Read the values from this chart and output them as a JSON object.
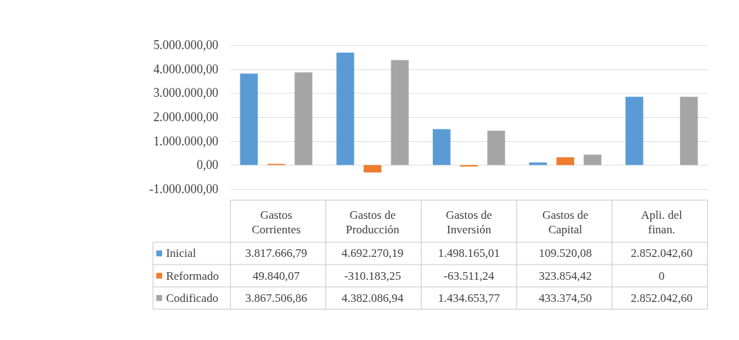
{
  "chart_data": {
    "type": "bar",
    "categories": [
      "Gastos Corrientes",
      "Gastos de Producción",
      "Gastos de Inversión",
      "Gastos de Capital",
      "Apli. del finan."
    ],
    "series": [
      {
        "name": "Inicial",
        "color": "#5b9bd5",
        "values": [
          3817666.79,
          4692270.19,
          1498165.01,
          109520.08,
          2852042.6
        ],
        "value_labels": [
          "3.817.666,79",
          "4.692.270,19",
          "1.498.165,01",
          "109.520,08",
          "2.852.042,60"
        ]
      },
      {
        "name": "Reformado",
        "color": "#ed7d31",
        "values": [
          49840.07,
          -310183.25,
          -63511.24,
          323854.42,
          0
        ],
        "value_labels": [
          "49.840,07",
          "-310.183,25",
          "-63.511,24",
          "323.854,42",
          "0"
        ]
      },
      {
        "name": "Codificado",
        "color": "#a5a5a5",
        "values": [
          3867506.86,
          4382086.94,
          1434653.77,
          433374.5,
          2852042.6
        ],
        "value_labels": [
          "3.867.506,86",
          "4.382.086,94",
          "1.434.653,77",
          "433.374,50",
          "2.852.042,60"
        ]
      }
    ],
    "ylim": [
      -1000000,
      5000000
    ],
    "yticks": [
      {
        "value": -1000000,
        "label": "-1.000.000,00"
      },
      {
        "value": 0,
        "label": "0,00"
      },
      {
        "value": 1000000,
        "label": "1.000.000,00"
      },
      {
        "value": 2000000,
        "label": "2.000.000,00"
      },
      {
        "value": 3000000,
        "label": "3.000.000,00"
      },
      {
        "value": 4000000,
        "label": "4.000.000,00"
      },
      {
        "value": 5000000,
        "label": "5.000.000,00"
      }
    ],
    "grid": "y",
    "legend": "bottom left"
  }
}
